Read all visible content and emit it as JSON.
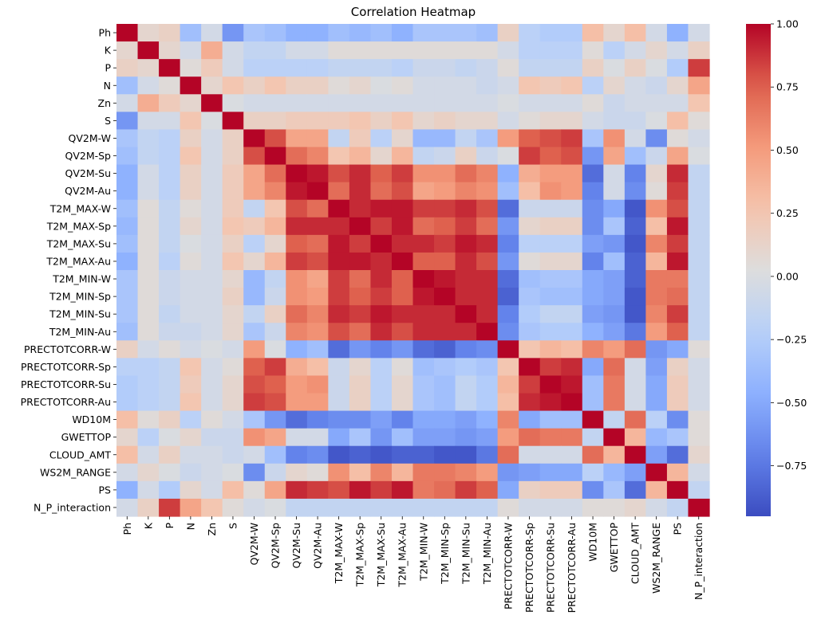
{
  "chart_data": {
    "type": "heatmap",
    "title": "Correlation Heatmap",
    "labels": [
      "Ph",
      "K",
      "P",
      "N",
      "Zn",
      "S",
      "QV2M-W",
      "QV2M-Sp",
      "QV2M-Su",
      "QV2M-Au",
      "T2M_MAX-W",
      "T2M_MAX-Sp",
      "T2M_MAX-Su",
      "T2M_MAX-Au",
      "T2M_MIN-W",
      "T2M_MIN-Sp",
      "T2M_MIN-Su",
      "T2M_MIN-Au",
      "PRECTOTCORR-W",
      "PRECTOTCORR-Sp",
      "PRECTOTCORR-Su",
      "PRECTOTCORR-Au",
      "WD10M",
      "GWETTOP",
      "CLOUD_AMT",
      "WS2M_RANGE",
      "PS",
      "N_P_interaction"
    ],
    "colormap": "coolwarm",
    "vmin": -0.95,
    "vmax": 1.0,
    "colorbar_ticks": [
      "1.00",
      "0.75",
      "0.50",
      "0.25",
      "0.00",
      "−0.25",
      "−0.50",
      "−0.75"
    ],
    "colorbar_tick_values": [
      1.0,
      0.75,
      0.5,
      0.25,
      0.0,
      -0.25,
      -0.5,
      -0.75
    ],
    "matrix": [
      [
        1.0,
        0.1,
        0.15,
        -0.35,
        -0.05,
        -0.6,
        -0.3,
        -0.35,
        -0.45,
        -0.45,
        -0.35,
        -0.4,
        -0.35,
        -0.45,
        -0.3,
        -0.3,
        -0.3,
        -0.35,
        0.15,
        -0.2,
        -0.25,
        -0.25,
        0.3,
        0.1,
        0.3,
        -0.05,
        -0.45,
        -0.05
      ],
      [
        0.1,
        1.0,
        0.1,
        -0.05,
        0.4,
        -0.05,
        -0.15,
        -0.15,
        -0.05,
        -0.05,
        0.05,
        0.05,
        0.05,
        0.05,
        0.05,
        0.05,
        0.05,
        0.05,
        -0.05,
        -0.2,
        -0.2,
        -0.2,
        0.05,
        -0.2,
        -0.05,
        0.1,
        -0.05,
        0.15
      ],
      [
        0.15,
        0.1,
        1.0,
        0.05,
        0.2,
        -0.05,
        -0.2,
        -0.2,
        -0.2,
        -0.2,
        -0.15,
        -0.15,
        -0.15,
        -0.2,
        -0.1,
        -0.1,
        -0.15,
        -0.1,
        0.05,
        -0.15,
        -0.15,
        -0.15,
        0.15,
        0.0,
        0.15,
        0.0,
        -0.25,
        0.85
      ],
      [
        -0.35,
        -0.05,
        0.05,
        1.0,
        0.1,
        0.25,
        0.15,
        0.25,
        0.15,
        0.15,
        0.05,
        0.1,
        0.0,
        0.05,
        -0.05,
        -0.05,
        -0.05,
        -0.1,
        -0.05,
        0.25,
        0.2,
        0.25,
        -0.2,
        0.1,
        -0.05,
        -0.1,
        0.1,
        0.45
      ],
      [
        -0.05,
        0.4,
        0.2,
        0.1,
        1.0,
        0.0,
        -0.05,
        -0.05,
        -0.05,
        -0.05,
        -0.05,
        -0.05,
        -0.05,
        -0.05,
        -0.05,
        -0.05,
        -0.05,
        -0.05,
        0.0,
        -0.05,
        -0.05,
        -0.05,
        0.05,
        -0.1,
        -0.05,
        -0.05,
        -0.05,
        0.25
      ],
      [
        -0.6,
        -0.05,
        -0.05,
        0.25,
        0.0,
        1.0,
        0.15,
        0.15,
        0.2,
        0.2,
        0.2,
        0.25,
        0.15,
        0.25,
        0.1,
        0.15,
        0.1,
        0.1,
        -0.05,
        0.05,
        0.1,
        0.1,
        -0.05,
        -0.1,
        -0.1,
        0.0,
        0.3,
        0.05
      ],
      [
        -0.3,
        -0.15,
        -0.2,
        0.15,
        -0.05,
        0.15,
        1.0,
        0.8,
        0.45,
        0.45,
        -0.15,
        0.2,
        -0.2,
        0.1,
        -0.4,
        -0.4,
        -0.15,
        -0.3,
        0.5,
        0.75,
        0.8,
        0.85,
        -0.3,
        0.55,
        -0.05,
        -0.65,
        0.05,
        -0.05
      ],
      [
        -0.35,
        -0.15,
        -0.2,
        0.25,
        -0.05,
        0.15,
        0.8,
        1.0,
        0.7,
        0.6,
        0.25,
        0.35,
        0.1,
        0.35,
        -0.15,
        -0.1,
        0.15,
        -0.1,
        0.0,
        0.85,
        0.75,
        0.8,
        -0.6,
        0.45,
        -0.35,
        -0.1,
        0.45,
        0.0
      ],
      [
        -0.45,
        -0.05,
        -0.2,
        0.15,
        -0.05,
        0.2,
        0.45,
        0.7,
        1.0,
        0.95,
        0.8,
        0.9,
        0.75,
        0.85,
        0.55,
        0.55,
        0.7,
        0.6,
        -0.45,
        0.4,
        0.5,
        0.5,
        -0.8,
        -0.05,
        -0.7,
        0.1,
        0.9,
        -0.15
      ],
      [
        -0.45,
        -0.05,
        -0.2,
        0.15,
        -0.05,
        0.2,
        0.45,
        0.6,
        0.95,
        1.0,
        0.7,
        0.9,
        0.7,
        0.8,
        0.45,
        0.5,
        0.6,
        0.55,
        -0.35,
        0.3,
        0.55,
        0.5,
        -0.7,
        -0.05,
        -0.65,
        0.05,
        0.85,
        -0.15
      ],
      [
        -0.35,
        0.05,
        -0.15,
        0.05,
        -0.05,
        0.2,
        -0.15,
        0.25,
        0.8,
        0.7,
        1.0,
        0.9,
        0.95,
        0.95,
        0.85,
        0.85,
        0.9,
        0.8,
        -0.8,
        -0.1,
        -0.1,
        -0.1,
        -0.65,
        -0.5,
        -0.9,
        0.55,
        0.8,
        -0.15
      ],
      [
        -0.4,
        0.05,
        -0.15,
        0.1,
        -0.05,
        0.25,
        0.2,
        0.35,
        0.9,
        0.9,
        0.9,
        1.0,
        0.85,
        0.95,
        0.7,
        0.75,
        0.85,
        0.7,
        -0.6,
        0.1,
        0.15,
        0.15,
        -0.65,
        -0.3,
        -0.85,
        0.3,
        0.95,
        -0.15
      ],
      [
        -0.35,
        0.05,
        -0.15,
        0.0,
        -0.05,
        0.15,
        -0.2,
        0.1,
        0.75,
        0.7,
        0.95,
        0.85,
        1.0,
        0.9,
        0.9,
        0.85,
        0.95,
        0.9,
        -0.7,
        -0.2,
        -0.2,
        -0.2,
        -0.55,
        -0.6,
        -0.9,
        0.6,
        0.85,
        -0.15
      ],
      [
        -0.45,
        0.05,
        -0.2,
        0.05,
        -0.05,
        0.25,
        0.1,
        0.35,
        0.85,
        0.8,
        0.95,
        0.95,
        0.9,
        1.0,
        0.75,
        0.75,
        0.9,
        0.8,
        -0.6,
        0.05,
        0.1,
        0.1,
        -0.7,
        -0.35,
        -0.85,
        0.35,
        0.95,
        -0.15
      ],
      [
        -0.3,
        0.05,
        -0.1,
        -0.05,
        -0.05,
        0.1,
        -0.4,
        -0.15,
        0.55,
        0.45,
        0.85,
        0.7,
        0.9,
        0.75,
        1.0,
        0.95,
        0.9,
        0.9,
        -0.8,
        -0.35,
        -0.3,
        -0.3,
        -0.5,
        -0.55,
        -0.85,
        0.65,
        0.65,
        -0.15
      ],
      [
        -0.3,
        0.05,
        -0.1,
        -0.05,
        -0.05,
        0.15,
        -0.4,
        -0.1,
        0.55,
        0.5,
        0.85,
        0.75,
        0.85,
        0.75,
        0.95,
        1.0,
        0.9,
        0.9,
        -0.85,
        -0.3,
        -0.35,
        -0.35,
        -0.5,
        -0.55,
        -0.9,
        0.65,
        0.7,
        -0.15
      ],
      [
        -0.3,
        0.05,
        -0.15,
        -0.05,
        -0.05,
        0.1,
        -0.15,
        0.15,
        0.7,
        0.6,
        0.9,
        0.85,
        0.95,
        0.9,
        0.9,
        0.9,
        1.0,
        0.9,
        -0.7,
        -0.25,
        -0.15,
        -0.15,
        -0.55,
        -0.6,
        -0.9,
        0.6,
        0.85,
        -0.15
      ],
      [
        -0.35,
        0.05,
        -0.1,
        -0.1,
        -0.05,
        0.1,
        -0.3,
        -0.1,
        0.6,
        0.55,
        0.8,
        0.7,
        0.9,
        0.8,
        0.9,
        0.9,
        0.9,
        1.0,
        -0.65,
        -0.3,
        -0.25,
        -0.25,
        -0.45,
        -0.55,
        -0.75,
        0.5,
        0.75,
        -0.15
      ],
      [
        0.15,
        -0.05,
        0.05,
        -0.05,
        0.0,
        -0.05,
        0.5,
        0.0,
        -0.45,
        -0.35,
        -0.8,
        -0.6,
        -0.7,
        -0.6,
        -0.8,
        -0.85,
        -0.7,
        -0.65,
        1.0,
        0.25,
        0.35,
        0.3,
        0.6,
        0.5,
        0.7,
        -0.6,
        -0.5,
        0.05
      ],
      [
        -0.2,
        -0.2,
        -0.15,
        0.25,
        -0.05,
        0.05,
        0.75,
        0.85,
        0.4,
        0.3,
        -0.1,
        0.1,
        -0.2,
        0.05,
        -0.35,
        -0.3,
        -0.25,
        -0.3,
        0.25,
        1.0,
        0.85,
        0.9,
        -0.5,
        0.7,
        -0.05,
        -0.55,
        0.15,
        -0.05
      ],
      [
        -0.25,
        -0.2,
        -0.15,
        0.2,
        -0.05,
        0.1,
        0.8,
        0.75,
        0.5,
        0.55,
        -0.1,
        0.15,
        -0.2,
        0.1,
        -0.3,
        -0.35,
        -0.15,
        -0.25,
        0.35,
        0.85,
        1.0,
        0.95,
        -0.35,
        0.65,
        -0.05,
        -0.5,
        0.2,
        -0.05
      ],
      [
        -0.25,
        -0.2,
        -0.15,
        0.25,
        -0.05,
        0.1,
        0.85,
        0.8,
        0.5,
        0.5,
        -0.1,
        0.15,
        -0.2,
        0.1,
        -0.3,
        -0.35,
        -0.15,
        -0.25,
        0.3,
        0.9,
        0.95,
        1.0,
        -0.35,
        0.65,
        -0.05,
        -0.5,
        0.2,
        -0.05
      ],
      [
        0.3,
        0.05,
        0.15,
        -0.2,
        0.05,
        -0.05,
        -0.3,
        -0.6,
        -0.8,
        -0.7,
        -0.65,
        -0.65,
        -0.55,
        -0.7,
        -0.5,
        -0.5,
        -0.55,
        -0.45,
        0.6,
        -0.5,
        -0.35,
        -0.35,
        1.0,
        -0.15,
        0.7,
        -0.2,
        -0.65,
        0.05
      ],
      [
        0.1,
        -0.2,
        0.0,
        0.1,
        -0.1,
        -0.1,
        0.55,
        0.45,
        -0.05,
        -0.05,
        -0.5,
        -0.3,
        -0.6,
        -0.35,
        -0.55,
        -0.55,
        -0.6,
        -0.55,
        0.5,
        0.7,
        0.65,
        0.65,
        -0.15,
        1.0,
        0.35,
        -0.4,
        -0.3,
        0.05
      ],
      [
        0.3,
        -0.05,
        0.15,
        -0.05,
        -0.05,
        -0.1,
        -0.05,
        -0.35,
        -0.7,
        -0.65,
        -0.9,
        -0.85,
        -0.9,
        -0.85,
        -0.85,
        -0.9,
        -0.9,
        -0.75,
        0.7,
        -0.05,
        -0.05,
        -0.05,
        0.7,
        0.35,
        1.0,
        -0.55,
        -0.8,
        0.1
      ],
      [
        -0.05,
        0.1,
        0.0,
        -0.1,
        -0.05,
        0.0,
        -0.65,
        -0.1,
        0.1,
        0.05,
        0.55,
        0.3,
        0.6,
        0.35,
        0.65,
        0.65,
        0.6,
        0.5,
        -0.6,
        -0.55,
        -0.5,
        -0.5,
        -0.2,
        -0.4,
        -0.55,
        1.0,
        0.35,
        -0.05
      ],
      [
        -0.45,
        -0.05,
        -0.25,
        0.1,
        -0.05,
        0.3,
        0.05,
        0.45,
        0.9,
        0.85,
        0.8,
        0.95,
        0.85,
        0.95,
        0.65,
        0.7,
        0.85,
        0.75,
        -0.5,
        0.15,
        0.2,
        0.2,
        -0.65,
        -0.3,
        -0.8,
        0.35,
        1.0,
        -0.15
      ],
      [
        -0.05,
        0.15,
        0.85,
        0.45,
        0.25,
        0.05,
        -0.05,
        0.0,
        -0.15,
        -0.15,
        -0.15,
        -0.15,
        -0.15,
        -0.15,
        -0.15,
        -0.15,
        -0.15,
        -0.15,
        0.05,
        -0.05,
        -0.05,
        -0.05,
        0.05,
        0.05,
        0.1,
        -0.05,
        -0.15,
        1.0
      ]
    ]
  }
}
